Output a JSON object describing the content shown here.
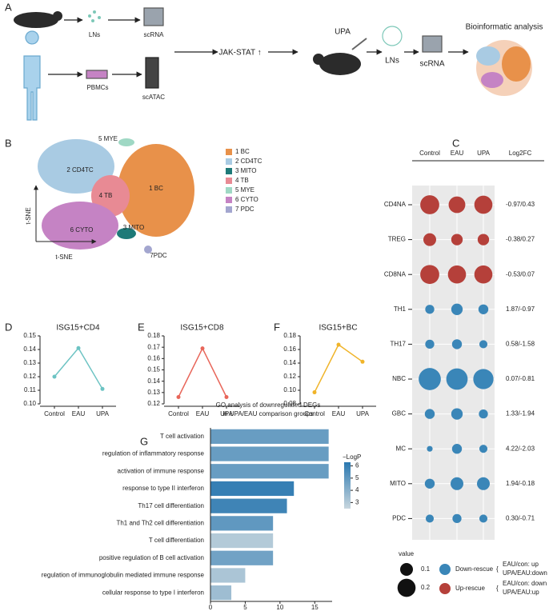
{
  "panel_labels": [
    "A",
    "B",
    "C",
    "D",
    "E",
    "F",
    "G"
  ],
  "schematic": {
    "labels": [
      "LNs",
      "scRNA",
      "PBMCs",
      "scATAC",
      "JAK-STAT ↑",
      "UPA",
      "LNs",
      "scRNA",
      "Bioinformatic analysis"
    ]
  },
  "tsne": {
    "x_label": "t-SNE",
    "y_label": "t-SNE",
    "cluster_labels": [
      "1 BC",
      "2 CD4TC",
      "3 MITO",
      "4 TB",
      "5 MYE",
      "6 CYTO",
      "7PDC"
    ],
    "legend": [
      "1 BC",
      "2 CD4TC",
      "3 MITO",
      "4 TB",
      "5 MYE",
      "6 CYTO",
      "7 PDC"
    ],
    "colors": [
      "#e8914a",
      "#a9cbe3",
      "#1e7a78",
      "#e88a94",
      "#9fd8c4",
      "#c583c4",
      "#a3a6cf"
    ]
  },
  "chart_data": [
    {
      "type": "dot",
      "columns": [
        "Control",
        "EAU",
        "UPA"
      ],
      "rows": [
        "CD4NA",
        "TREG",
        "CD8NA",
        "TH1",
        "TH17",
        "NBC",
        "GBC",
        "MC",
        "MITO",
        "PDC"
      ],
      "values": [
        [
          0.22,
          0.17,
          0.2
        ],
        [
          0.1,
          0.08,
          0.08
        ],
        [
          0.22,
          0.2,
          0.2
        ],
        [
          0.05,
          0.08,
          0.06
        ],
        [
          0.05,
          0.06,
          0.04
        ],
        [
          0.3,
          0.28,
          0.25
        ],
        [
          0.06,
          0.08,
          0.05
        ],
        [
          0.02,
          0.06,
          0.04
        ],
        [
          0.06,
          0.1,
          0.1
        ],
        [
          0.04,
          0.05,
          0.04
        ]
      ],
      "row_colors": [
        "#b5403a",
        "#b5403a",
        "#b5403a",
        "#3a86b8",
        "#3a86b8",
        "#3a86b8",
        "#3a86b8",
        "#3a86b8",
        "#3a86b8",
        "#3a86b8"
      ],
      "log2fc_header": "Log2FC",
      "log2fc": [
        "-0.97/0.43",
        "-0.38/0.27",
        "-0.53/0.07",
        "1.87/-0.97",
        "0.58/-1.58",
        "0.07/-0.81",
        "1.33/-1.94",
        "4.22/-2.03",
        "1.94/-0.18",
        "0.30/-0.71"
      ],
      "size_legend": {
        "title": "value",
        "values": [
          0.1,
          0.2
        ]
      },
      "color_legend": [
        {
          "name": "Down-rescue",
          "color": "#3a86b8",
          "note": [
            "EAU/con: up",
            "UPA/EAU:down"
          ]
        },
        {
          "name": "Up-rescue",
          "color": "#b5403a",
          "note": [
            "EAU/con: down",
            "UPA/EAU:up"
          ]
        }
      ]
    },
    {
      "type": "line",
      "title": "ISG15+CD4",
      "categories": [
        "Control",
        "EAU",
        "UPA"
      ],
      "values": [
        0.12,
        0.141,
        0.111
      ],
      "color": "#6cc3c3",
      "ylim": [
        0.1,
        0.15
      ],
      "yticks": [
        {
          "value": 0.1,
          "label": "0.10"
        },
        0.11,
        0.12,
        0.13,
        0.14,
        0.15
      ]
    },
    {
      "type": "line",
      "title": "ISG15+CD8",
      "categories": [
        "Control",
        "EAU",
        "UPA"
      ],
      "values": [
        0.126,
        0.169,
        0.126
      ],
      "color": "#e8665a",
      "ylim": [
        0.12,
        0.18
      ],
      "yticks": [
        0.12,
        0.13,
        0.14,
        0.15,
        0.16,
        0.17,
        0.18
      ]
    },
    {
      "type": "line",
      "title": "ISG15+BC",
      "categories": [
        "Control",
        "EAU",
        "UPA"
      ],
      "values": [
        0.097,
        0.167,
        0.142
      ],
      "color": "#f0b429",
      "ylim": [
        0.08,
        0.18
      ],
      "yticks": [
        0.08,
        {
          "value": 0.1,
          "label": "0.10"
        },
        0.12,
        0.14,
        0.16,
        0.18
      ]
    },
    {
      "type": "barh",
      "title": [
        "GO analysis of downregulated DEGs",
        "in UPA/EAU comparison groups"
      ],
      "categories": [
        "T cell activation",
        "regulation of inflammatory response",
        "activation of immune response",
        "response to type II interferon",
        "Th17 cell differentiation",
        "Th1 and Th2 cell differentiation",
        "T cell differentiation",
        "positive regulation of B cell activation",
        "regulation of immunoglobulin mediated immune response",
        "cellular response to type I interferon"
      ],
      "values": [
        17,
        17,
        17,
        12,
        11,
        9,
        9,
        9,
        5,
        3
      ],
      "color_values": [
        4.8,
        4.8,
        4.8,
        6,
        5.8,
        5,
        3,
        4.6,
        3.2,
        3.5
      ],
      "label_colors": [
        "#3a86b8",
        "#222222",
        "#222222",
        "#3a86b8",
        "#222222",
        "#222222",
        "#222222",
        "#3a86b8",
        "#222222",
        "#3a86b8"
      ],
      "xlim": [
        0,
        17.5
      ],
      "xticks": [
        0,
        5,
        10,
        15
      ],
      "colorbar": {
        "title": "−LogP",
        "range": [
          2.5,
          6.3
        ],
        "colors": [
          "#c8d6de",
          "#2a78b0"
        ],
        "ticks": [
          3,
          4,
          5,
          6
        ]
      }
    }
  ]
}
